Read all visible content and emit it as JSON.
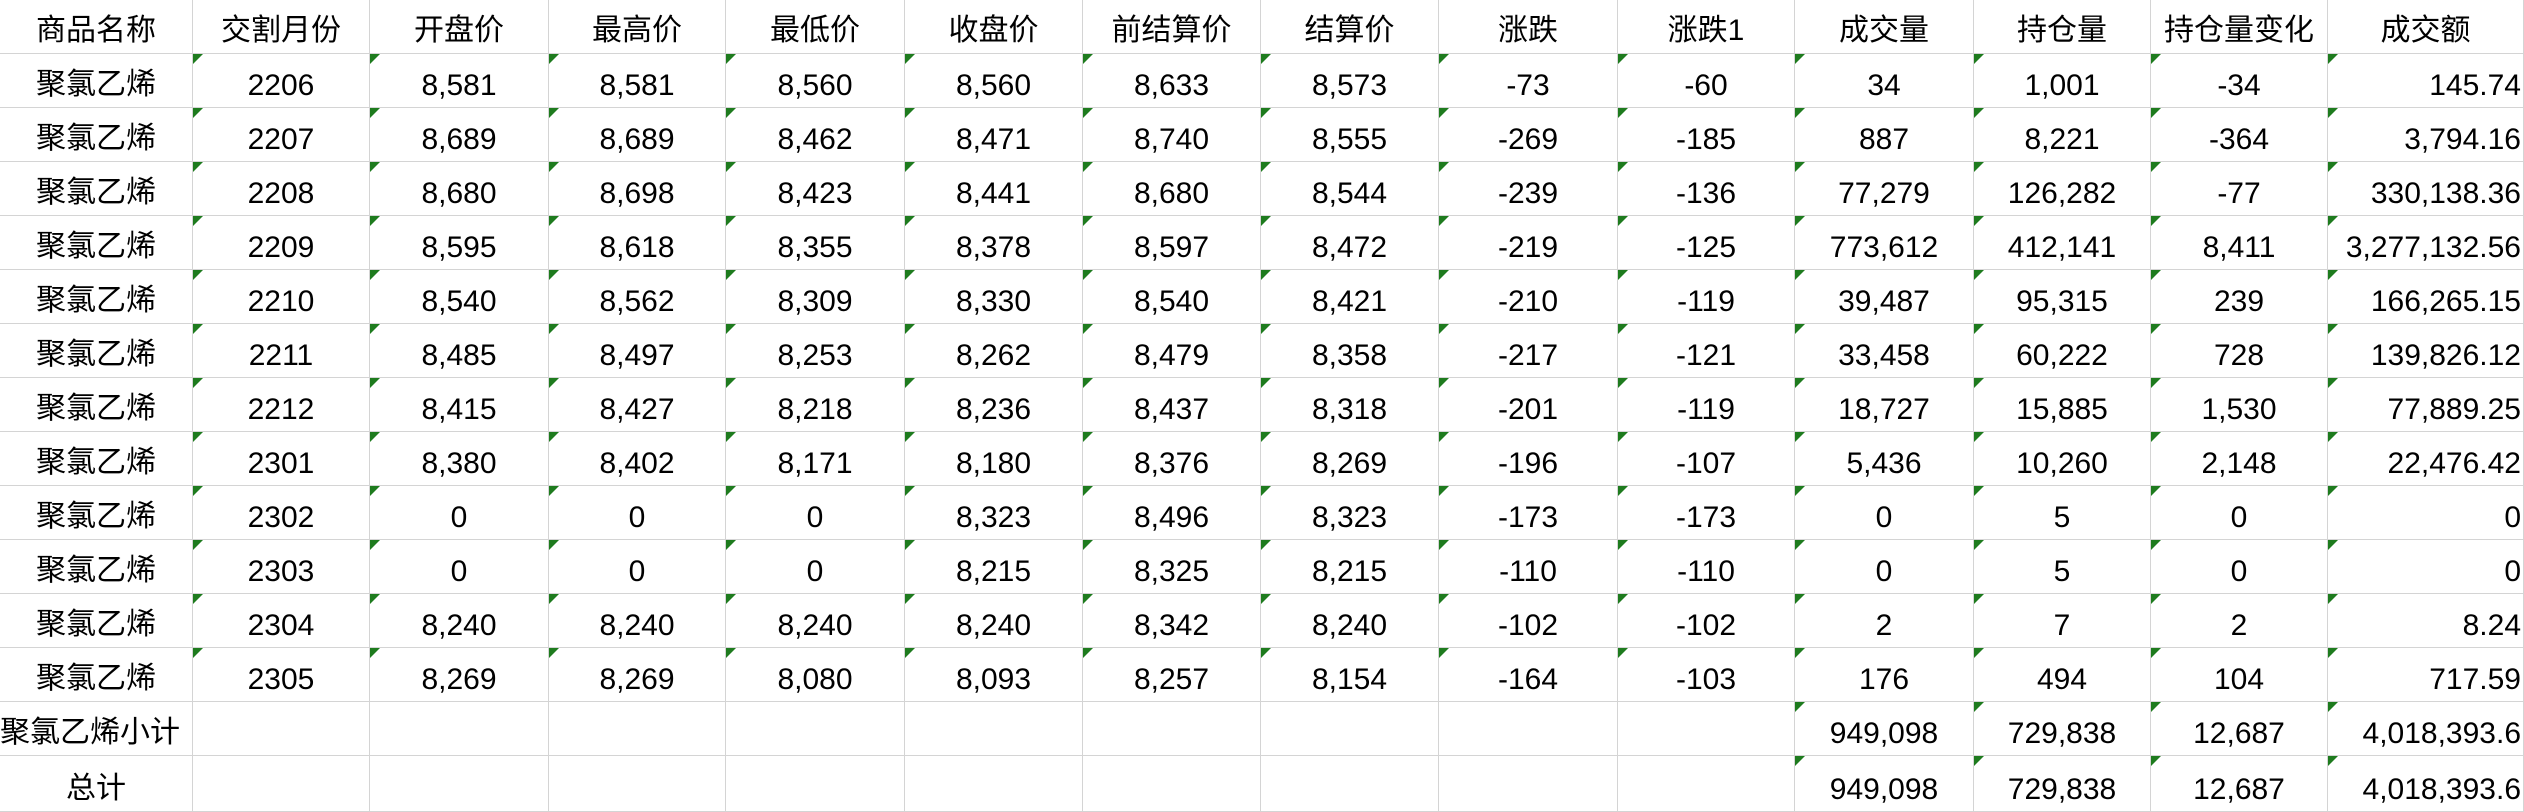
{
  "table": {
    "header": [
      "商品名称",
      "交割月份",
      "开盘价",
      "最高价",
      "最低价",
      "收盘价",
      "前结算价",
      "结算价",
      "涨跌",
      "涨跌1",
      "成交量",
      "持仓量",
      "持仓量变化",
      "成交额"
    ],
    "rows": [
      [
        "聚氯乙烯",
        "2206",
        "8,581",
        "8,581",
        "8,560",
        "8,560",
        "8,633",
        "8,573",
        "-73",
        "-60",
        "34",
        "1,001",
        "-34",
        "145.74"
      ],
      [
        "聚氯乙烯",
        "2207",
        "8,689",
        "8,689",
        "8,462",
        "8,471",
        "8,740",
        "8,555",
        "-269",
        "-185",
        "887",
        "8,221",
        "-364",
        "3,794.16"
      ],
      [
        "聚氯乙烯",
        "2208",
        "8,680",
        "8,698",
        "8,423",
        "8,441",
        "8,680",
        "8,544",
        "-239",
        "-136",
        "77,279",
        "126,282",
        "-77",
        "330,138.36"
      ],
      [
        "聚氯乙烯",
        "2209",
        "8,595",
        "8,618",
        "8,355",
        "8,378",
        "8,597",
        "8,472",
        "-219",
        "-125",
        "773,612",
        "412,141",
        "8,411",
        "3,277,132.56"
      ],
      [
        "聚氯乙烯",
        "2210",
        "8,540",
        "8,562",
        "8,309",
        "8,330",
        "8,540",
        "8,421",
        "-210",
        "-119",
        "39,487",
        "95,315",
        "239",
        "166,265.15"
      ],
      [
        "聚氯乙烯",
        "2211",
        "8,485",
        "8,497",
        "8,253",
        "8,262",
        "8,479",
        "8,358",
        "-217",
        "-121",
        "33,458",
        "60,222",
        "728",
        "139,826.12"
      ],
      [
        "聚氯乙烯",
        "2212",
        "8,415",
        "8,427",
        "8,218",
        "8,236",
        "8,437",
        "8,318",
        "-201",
        "-119",
        "18,727",
        "15,885",
        "1,530",
        "77,889.25"
      ],
      [
        "聚氯乙烯",
        "2301",
        "8,380",
        "8,402",
        "8,171",
        "8,180",
        "8,376",
        "8,269",
        "-196",
        "-107",
        "5,436",
        "10,260",
        "2,148",
        "22,476.42"
      ],
      [
        "聚氯乙烯",
        "2302",
        "0",
        "0",
        "0",
        "8,323",
        "8,496",
        "8,323",
        "-173",
        "-173",
        "0",
        "5",
        "0",
        "0"
      ],
      [
        "聚氯乙烯",
        "2303",
        "0",
        "0",
        "0",
        "8,215",
        "8,325",
        "8,215",
        "-110",
        "-110",
        "0",
        "5",
        "0",
        "0"
      ],
      [
        "聚氯乙烯",
        "2304",
        "8,240",
        "8,240",
        "8,240",
        "8,240",
        "8,342",
        "8,240",
        "-102",
        "-102",
        "2",
        "7",
        "2",
        "8.24"
      ],
      [
        "聚氯乙烯",
        "2305",
        "8,269",
        "8,269",
        "8,080",
        "8,093",
        "8,257",
        "8,154",
        "-164",
        "-103",
        "176",
        "494",
        "104",
        "717.59"
      ]
    ],
    "totals": [
      {
        "label": "聚氯乙烯小计",
        "values": [
          "949,098",
          "729,838",
          "12,687",
          "4,018,393.6"
        ]
      },
      {
        "label": "总计",
        "values": [
          "949,098",
          "729,838",
          "12,687",
          "4,018,393.6"
        ]
      }
    ]
  }
}
